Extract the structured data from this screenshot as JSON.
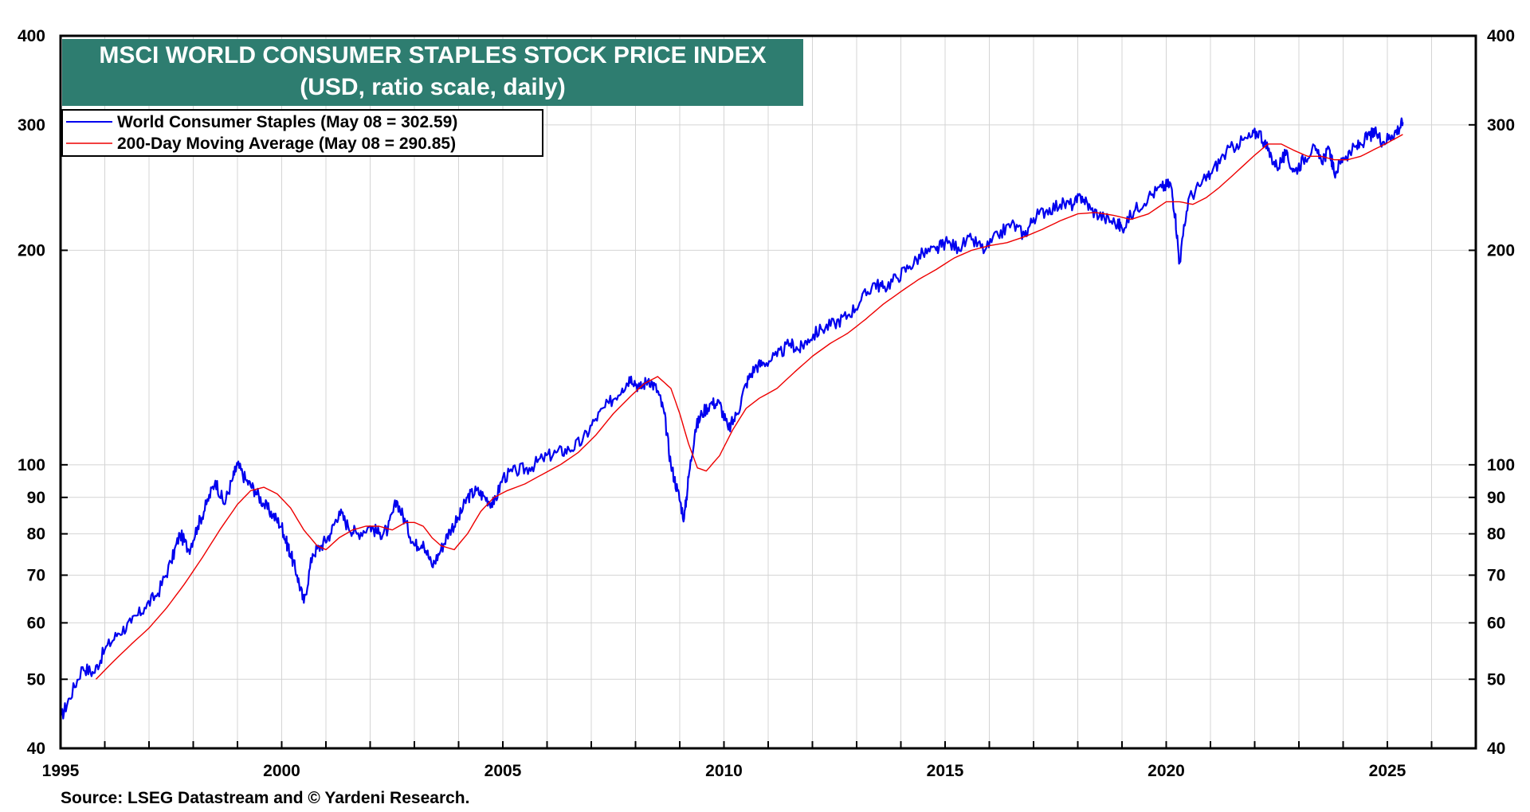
{
  "chart_data": {
    "type": "line",
    "title": "MSCI WORLD CONSUMER STAPLES STOCK PRICE INDEX",
    "subtitle": "(USD, ratio scale, daily)",
    "xlabel": "",
    "ylabel": "",
    "y_scale": "log",
    "ylim": [
      40,
      400
    ],
    "xlim": [
      1995.0,
      2027.0
    ],
    "y_ticks": [
      40,
      50,
      60,
      70,
      80,
      90,
      100,
      200,
      300,
      400
    ],
    "y_tick_labels": [
      "40",
      "50",
      "60",
      "70",
      "80",
      "90",
      "100",
      "200",
      "300",
      "400"
    ],
    "x_ticks": [
      1995,
      2000,
      2005,
      2010,
      2015,
      2020,
      2025
    ],
    "x_tick_labels": [
      "1995",
      "2000",
      "2005",
      "2010",
      "2015",
      "2020",
      "2025"
    ],
    "grid": true,
    "legend_position": "top-left",
    "colors": {
      "title_bg": "#2e7d70",
      "series": "#0000ee",
      "average": "#ee0000"
    },
    "series": [
      {
        "name": "World Consumer Staples (May 08 = 302.59)",
        "color": "#0000ee",
        "x": [
          1995.0,
          1995.2,
          1995.5,
          1995.75,
          1996.0,
          1996.3,
          1996.6,
          1996.9,
          1997.2,
          1997.5,
          1997.7,
          1997.9,
          1998.1,
          1998.3,
          1998.5,
          1998.7,
          1998.9,
          1999.0,
          1999.2,
          1999.4,
          1999.6,
          1999.8,
          2000.0,
          2000.1,
          2000.2,
          2000.35,
          2000.5,
          2000.7,
          2000.9,
          2001.1,
          2001.3,
          2001.5,
          2001.7,
          2002.0,
          2002.2,
          2002.4,
          2002.6,
          2002.8,
          2003.0,
          2003.2,
          2003.4,
          2003.6,
          2003.8,
          2004.0,
          2004.2,
          2004.4,
          2004.6,
          2004.8,
          2005.0,
          2005.3,
          2005.6,
          2005.9,
          2006.2,
          2006.5,
          2006.8,
          2007.1,
          2007.4,
          2007.7,
          2007.9,
          2008.1,
          2008.3,
          2008.5,
          2008.65,
          2008.8,
          2008.95,
          2009.1,
          2009.2,
          2009.35,
          2009.5,
          2009.7,
          2009.9,
          2010.1,
          2010.3,
          2010.5,
          2010.7,
          2010.9,
          2011.2,
          2011.5,
          2011.7,
          2011.9,
          2012.2,
          2012.5,
          2012.8,
          2013.1,
          2013.4,
          2013.6,
          2013.9,
          2014.2,
          2014.5,
          2014.8,
          2015.0,
          2015.3,
          2015.6,
          2015.9,
          2016.2,
          2016.5,
          2016.8,
          2017.0,
          2017.3,
          2017.6,
          2017.9,
          2018.1,
          2018.3,
          2018.6,
          2018.9,
          2019.0,
          2019.3,
          2019.6,
          2019.9,
          2020.1,
          2020.2,
          2020.3,
          2020.5,
          2020.8,
          2021.0,
          2021.3,
          2021.6,
          2021.9,
          2022.1,
          2022.3,
          2022.5,
          2022.7,
          2022.9,
          2023.1,
          2023.3,
          2023.5,
          2023.7,
          2023.8,
          2024.0,
          2024.2,
          2024.4,
          2024.6,
          2024.75,
          2024.9,
          2025.1,
          2025.25,
          2025.35
        ],
        "values": [
          44,
          47,
          52,
          51,
          55,
          58,
          60,
          63,
          66,
          73,
          80,
          76,
          82,
          88,
          95,
          88,
          96,
          100,
          95,
          92,
          88,
          85,
          82,
          78,
          75,
          70,
          64,
          75,
          77,
          80,
          86,
          82,
          80,
          82,
          80,
          81,
          89,
          83,
          77,
          78,
          72,
          76,
          81,
          84,
          90,
          92,
          90,
          88,
          96,
          98,
          99,
          102,
          104,
          105,
          108,
          116,
          122,
          128,
          133,
          128,
          132,
          127,
          118,
          100,
          92,
          84,
          96,
          112,
          118,
          122,
          122,
          112,
          118,
          130,
          137,
          139,
          142,
          148,
          145,
          150,
          155,
          158,
          162,
          170,
          180,
          177,
          183,
          190,
          198,
          200,
          205,
          202,
          207,
          200,
          210,
          218,
          210,
          222,
          228,
          232,
          232,
          238,
          228,
          222,
          218,
          215,
          228,
          238,
          245,
          248,
          225,
          192,
          236,
          248,
          256,
          272,
          282,
          288,
          294,
          276,
          262,
          272,
          258,
          268,
          278,
          268,
          276,
          256,
          270,
          276,
          282,
          290,
          292,
          284,
          290,
          296,
          302.59
        ]
      },
      {
        "name": "200-Day Moving Average (May 08 = 290.85)",
        "color": "#ee0000",
        "x": [
          1995.8,
          1996.2,
          1996.6,
          1997.0,
          1997.4,
          1997.8,
          1998.2,
          1998.6,
          1999.0,
          1999.3,
          1999.6,
          1999.9,
          2000.2,
          2000.5,
          2000.8,
          2001.0,
          2001.3,
          2001.6,
          2001.9,
          2002.2,
          2002.5,
          2002.8,
          2003.0,
          2003.2,
          2003.4,
          2003.6,
          2003.9,
          2004.2,
          2004.5,
          2004.8,
          2005.1,
          2005.5,
          2005.9,
          2006.3,
          2006.7,
          2007.1,
          2007.5,
          2007.9,
          2008.2,
          2008.5,
          2008.8,
          2009.0,
          2009.2,
          2009.4,
          2009.6,
          2009.9,
          2010.2,
          2010.5,
          2010.8,
          2011.2,
          2011.6,
          2012.0,
          2012.4,
          2012.8,
          2013.2,
          2013.6,
          2014.0,
          2014.4,
          2014.8,
          2015.2,
          2015.6,
          2016.0,
          2016.4,
          2016.8,
          2017.2,
          2017.6,
          2018.0,
          2018.4,
          2018.8,
          2019.2,
          2019.6,
          2020.0,
          2020.3,
          2020.6,
          2020.9,
          2021.2,
          2021.6,
          2022.0,
          2022.3,
          2022.6,
          2022.9,
          2023.2,
          2023.5,
          2023.8,
          2024.1,
          2024.4,
          2024.7,
          2025.0,
          2025.35
        ],
        "values": [
          50,
          53,
          56,
          59,
          63,
          68,
          74,
          81,
          88,
          92,
          93,
          91,
          87,
          81,
          77,
          76,
          79,
          81,
          82,
          82,
          81,
          83,
          83,
          82,
          79,
          77,
          76,
          80,
          86,
          90,
          92,
          94,
          97,
          100,
          104,
          110,
          118,
          125,
          130,
          133,
          128,
          118,
          107,
          99,
          98,
          103,
          112,
          120,
          124,
          128,
          135,
          142,
          148,
          153,
          160,
          168,
          175,
          182,
          188,
          195,
          200,
          203,
          205,
          209,
          214,
          220,
          225,
          226,
          224,
          221,
          225,
          234,
          234,
          232,
          237,
          245,
          258,
          272,
          282,
          282,
          276,
          271,
          271,
          268,
          268,
          271,
          277,
          283,
          290.85
        ]
      }
    ]
  },
  "header": {
    "title": "MSCI WORLD CONSUMER STAPLES STOCK PRICE INDEX",
    "subtitle": "(USD, ratio scale, daily)"
  },
  "legend": {
    "items": [
      "World Consumer Staples (May 08 = 302.59)",
      "200-Day Moving Average (May 08 = 290.85)"
    ]
  },
  "footer": {
    "source": "Source: LSEG Datastream and © Yardeni Research."
  }
}
